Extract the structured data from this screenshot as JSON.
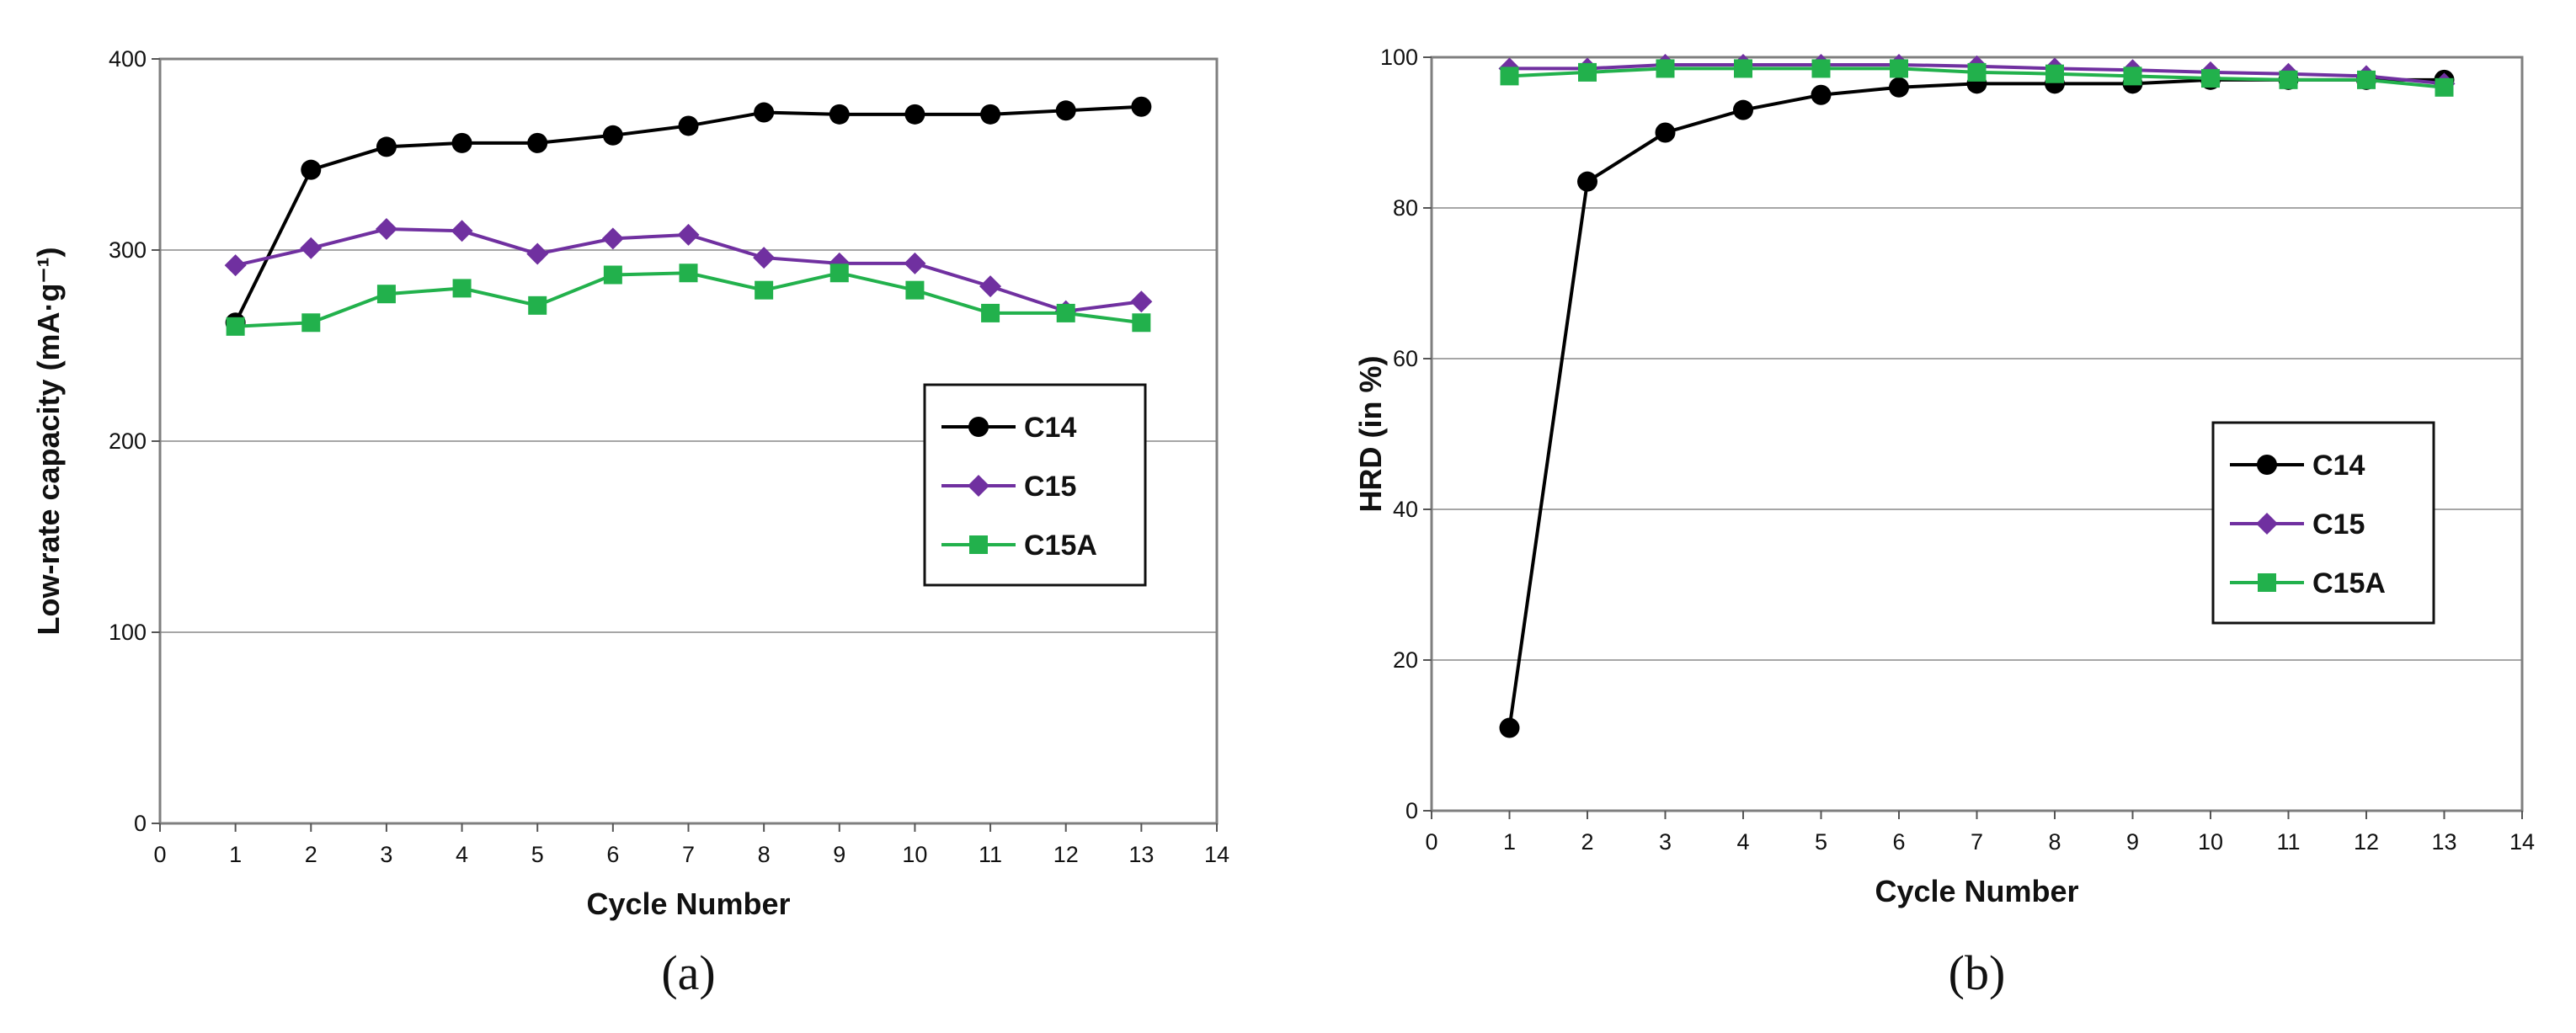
{
  "chart_data": [
    {
      "panel": "a",
      "type": "line",
      "caption": "(a)",
      "xlabel": "Cycle Number",
      "ylabel": "Low-rate capacity (mA·g⁻¹)",
      "xlim": [
        0,
        14
      ],
      "ylim": [
        0,
        400
      ],
      "xticks": [
        0,
        1,
        2,
        3,
        4,
        5,
        6,
        7,
        8,
        9,
        10,
        11,
        12,
        13,
        14
      ],
      "yticks": [
        0,
        100,
        200,
        300,
        400
      ],
      "grid": "horizontal",
      "legend_position": "right-middle",
      "series": [
        {
          "name": "C14",
          "color": "#000000",
          "marker": "circle",
          "x": [
            1,
            2,
            3,
            4,
            5,
            6,
            7,
            8,
            9,
            10,
            11,
            12,
            13
          ],
          "values": [
            262,
            342,
            354,
            356,
            356,
            360,
            365,
            372,
            371,
            371,
            371,
            373,
            375
          ]
        },
        {
          "name": "C15",
          "color": "#7030a0",
          "marker": "diamond",
          "x": [
            1,
            2,
            3,
            4,
            5,
            6,
            7,
            8,
            9,
            10,
            11,
            12,
            13
          ],
          "values": [
            292,
            301,
            311,
            310,
            298,
            306,
            308,
            296,
            293,
            293,
            281,
            268,
            273
          ]
        },
        {
          "name": "C15A",
          "color": "#22b14c",
          "marker": "square",
          "x": [
            1,
            2,
            3,
            4,
            5,
            6,
            7,
            8,
            9,
            10,
            11,
            12,
            13
          ],
          "values": [
            260,
            262,
            277,
            280,
            271,
            287,
            288,
            279,
            288,
            279,
            267,
            267,
            262
          ]
        }
      ]
    },
    {
      "panel": "b",
      "type": "line",
      "caption": "(b)",
      "xlabel": "Cycle Number",
      "ylabel": "HRD (in %)",
      "xlim": [
        0,
        14
      ],
      "ylim": [
        0,
        100
      ],
      "xticks": [
        0,
        1,
        2,
        3,
        4,
        5,
        6,
        7,
        8,
        9,
        10,
        11,
        12,
        13,
        14
      ],
      "yticks": [
        0,
        20,
        40,
        60,
        80,
        100
      ],
      "grid": "horizontal",
      "legend_position": "right-middle",
      "series": [
        {
          "name": "C14",
          "color": "#000000",
          "marker": "circle",
          "x": [
            1,
            2,
            3,
            4,
            5,
            6,
            7,
            8,
            9,
            10,
            11,
            12,
            13
          ],
          "values": [
            11,
            83.5,
            90,
            93,
            95,
            96,
            96.5,
            96.5,
            96.5,
            97,
            97,
            97,
            97
          ]
        },
        {
          "name": "C15",
          "color": "#7030a0",
          "marker": "diamond",
          "x": [
            1,
            2,
            3,
            4,
            5,
            6,
            7,
            8,
            9,
            10,
            11,
            12,
            13
          ],
          "values": [
            98.5,
            98.5,
            99,
            99,
            99,
            99,
            98.8,
            98.5,
            98.3,
            98,
            97.8,
            97.5,
            96.5
          ]
        },
        {
          "name": "C15A",
          "color": "#22b14c",
          "marker": "square",
          "x": [
            1,
            2,
            3,
            4,
            5,
            6,
            7,
            8,
            9,
            10,
            11,
            12,
            13
          ],
          "values": [
            97.5,
            98,
            98.5,
            98.5,
            98.5,
            98.5,
            98,
            97.8,
            97.5,
            97.2,
            97,
            97,
            96
          ]
        }
      ]
    }
  ]
}
